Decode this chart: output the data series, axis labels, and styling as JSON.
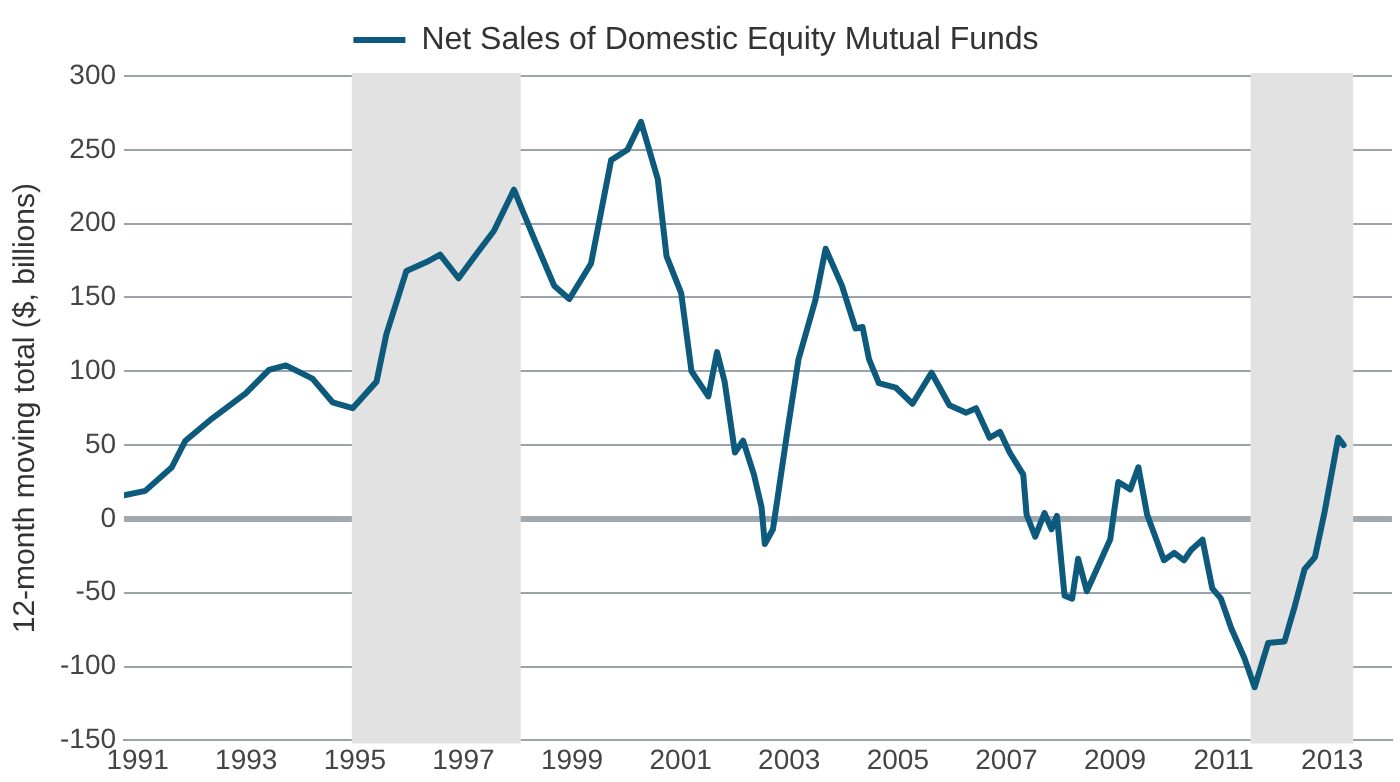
{
  "chart_data": {
    "type": "line",
    "legend": "top",
    "grid": "y",
    "marker": "none",
    "line_style": "solid",
    "ylabel": "12-month moving total ($, billions)",
    "xlim": [
      1990.75,
      2014.1
    ],
    "xticks": [
      1991,
      1993,
      1995,
      1997,
      1999,
      2001,
      2003,
      2005,
      2007,
      2009,
      2011,
      2013
    ],
    "ylim": [
      -150,
      300
    ],
    "yticks": [
      -150,
      -100,
      -50,
      0,
      50,
      100,
      150,
      200,
      250,
      300
    ],
    "bands": [
      {
        "axis": "x",
        "from": 1995,
        "to": 1998,
        "color": "#e2e2e2"
      },
      {
        "axis": "x",
        "from": 2011.55,
        "to": 2013.33,
        "color": "#e2e2e2"
      }
    ],
    "series": [
      {
        "name": "Net Sales of Domestic Equity Mutual Funds",
        "color": "#0d5a7c",
        "x": [
          1990.75,
          1991.14,
          1991.63,
          1991.88,
          1992.37,
          1992.99,
          1993.42,
          1993.73,
          1994.22,
          1994.59,
          1994.96,
          1995.4,
          1995.58,
          1995.95,
          1996.32,
          1996.57,
          1996.91,
          1997.25,
          1997.56,
          1997.93,
          1998.3,
          1998.67,
          1998.95,
          1999.35,
          1999.72,
          2000.02,
          2000.27,
          2000.58,
          2000.74,
          2001.01,
          2001.2,
          2001.51,
          2001.67,
          2001.81,
          2002.0,
          2002.15,
          2002.35,
          2002.49,
          2002.55,
          2002.7,
          2002.96,
          2003.17,
          2003.48,
          2003.67,
          2003.97,
          2004.22,
          2004.35,
          2004.47,
          2004.65,
          2004.96,
          2005.27,
          2005.62,
          2005.95,
          2006.26,
          2006.44,
          2006.69,
          2006.88,
          2007.06,
          2007.31,
          2007.37,
          2007.53,
          2007.7,
          2007.83,
          2007.93,
          2008.07,
          2008.21,
          2008.32,
          2008.48,
          2008.91,
          2009.06,
          2009.28,
          2009.43,
          2009.59,
          2009.9,
          2010.09,
          2010.27,
          2010.4,
          2010.61,
          2010.79,
          2010.95,
          2011.14,
          2011.38,
          2011.57,
          2011.82,
          2012.12,
          2012.31,
          2012.49,
          2012.68,
          2012.86,
          2013.11,
          2013.21
        ],
        "values": [
          16,
          19,
          35,
          53,
          68,
          85,
          101,
          104,
          95,
          79,
          75,
          93,
          125,
          168,
          174,
          179,
          163,
          180,
          195,
          223,
          190,
          158,
          149,
          173,
          243,
          250,
          269,
          230,
          178,
          153,
          100,
          83,
          113,
          93,
          45,
          53,
          30,
          8,
          -17,
          -7,
          58,
          108,
          148,
          183,
          158,
          129,
          130,
          108,
          92,
          89,
          78,
          99,
          77,
          72,
          75,
          55,
          59,
          45,
          30,
          3,
          -12,
          4,
          -7,
          2,
          -52,
          -54,
          -27,
          -49,
          -14,
          25,
          20,
          35,
          3,
          -28,
          -23,
          -28,
          -21,
          -14,
          -47,
          -54,
          -74,
          -94,
          -114,
          -84,
          -83,
          -59,
          -34,
          -26,
          5,
          55,
          50
        ]
      }
    ]
  }
}
